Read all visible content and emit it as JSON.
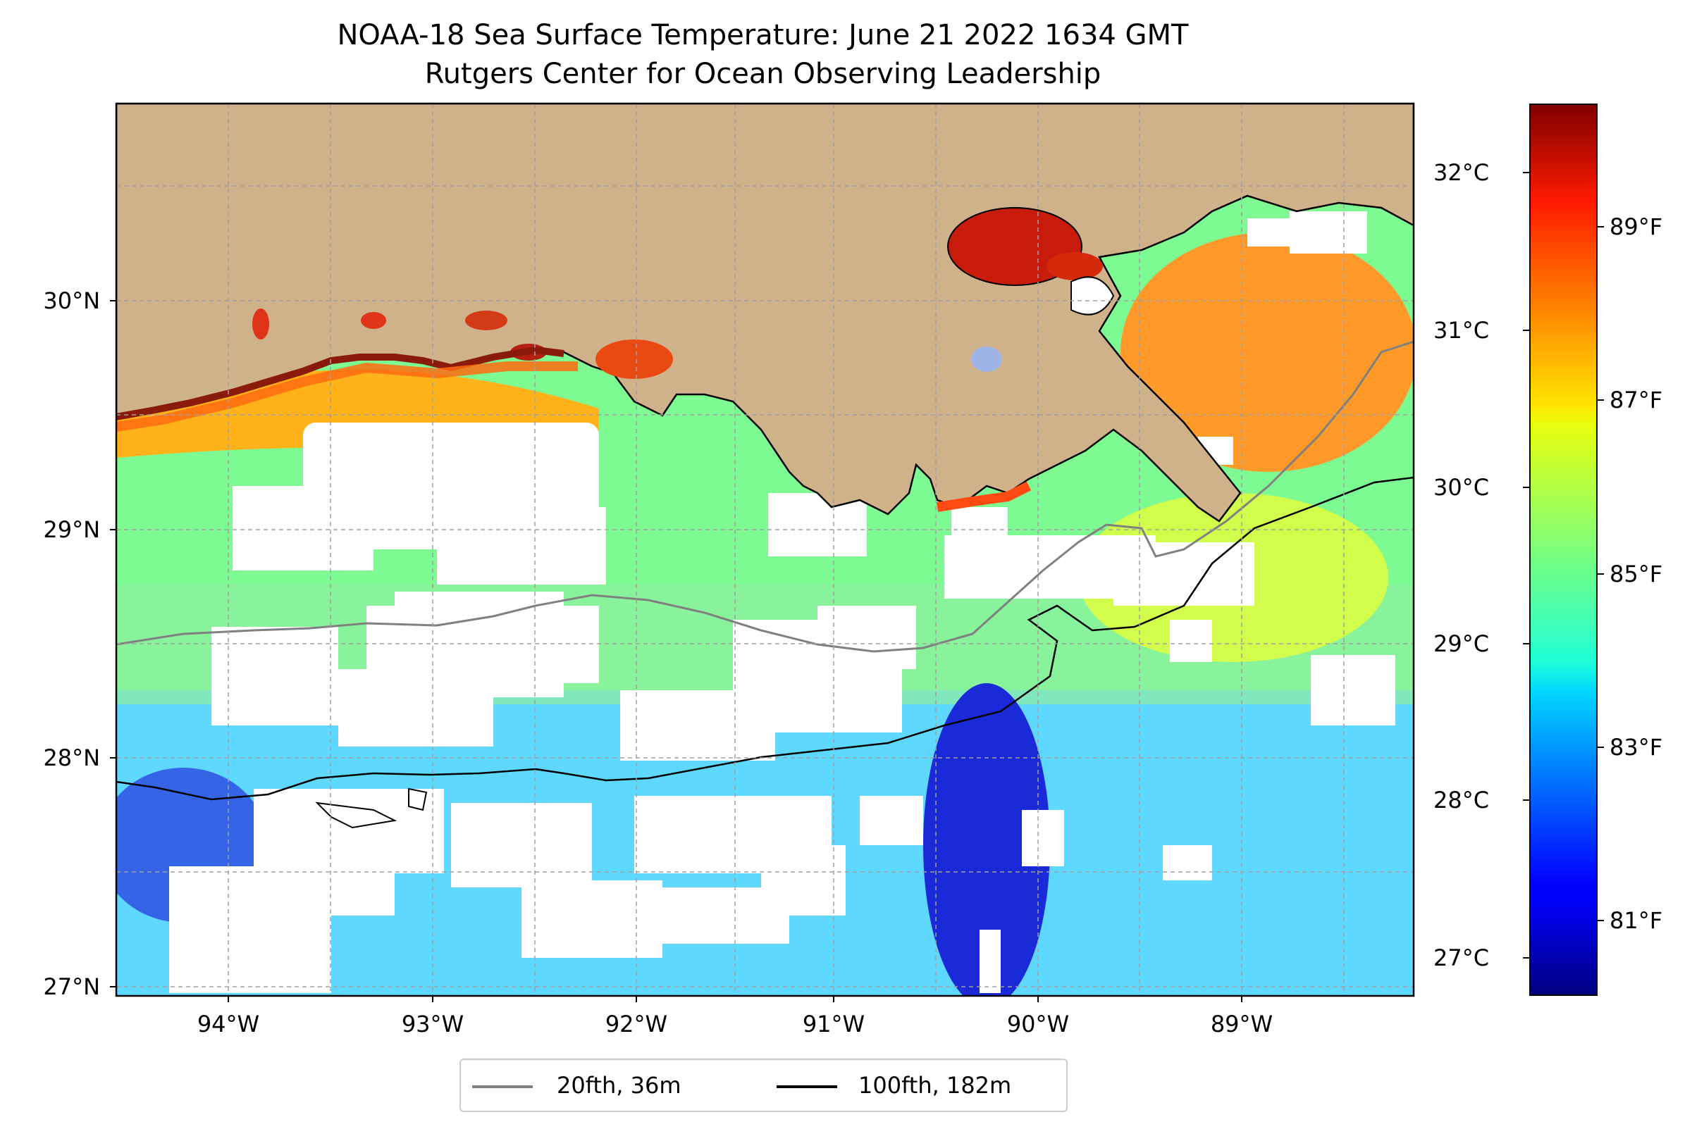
{
  "title": {
    "line1": "NOAA-18 Sea Surface Temperature: June 21 2022 1634 GMT",
    "line2": "Rutgers Center for Ocean Observing Leadership"
  },
  "map": {
    "extent": {
      "lon": [
        -94.58,
        -88.22
      ],
      "lat": [
        26.93,
        30.83
      ]
    },
    "lat_ticks": [
      {
        "value": 30,
        "label": "30°N"
      },
      {
        "value": 29,
        "label": "29°N"
      },
      {
        "value": 28,
        "label": "28°N"
      },
      {
        "value": 27,
        "label": "27°N"
      }
    ],
    "lon_ticks": [
      {
        "value": -94,
        "label": "94°W"
      },
      {
        "value": -93,
        "label": "93°W"
      },
      {
        "value": -92,
        "label": "92°W"
      },
      {
        "value": -91,
        "label": "91°W"
      },
      {
        "value": -90,
        "label": "90°W"
      },
      {
        "value": -89,
        "label": "89°W"
      }
    ],
    "gridlines": true,
    "land_color": "#cfb18a",
    "cloud_color": "#ffffff"
  },
  "legend": {
    "items": [
      {
        "label": "20fth, 36m",
        "color": "#808080"
      },
      {
        "label": "100fth, 182m",
        "color": "#000000"
      }
    ]
  },
  "colorbar": {
    "colormap": "jet",
    "celsius_range": [
      26.65,
      32.45
    ],
    "celsius_ticks": [
      {
        "value": 32,
        "label": "32°C"
      },
      {
        "value": 31,
        "label": "31°C"
      },
      {
        "value": 30,
        "label": "30°C"
      },
      {
        "value": 29,
        "label": "29°C"
      },
      {
        "value": 28,
        "label": "28°C"
      },
      {
        "value": 27,
        "label": "27°C"
      }
    ],
    "fahrenheit_ticks": [
      {
        "value": 89,
        "label": "89°F"
      },
      {
        "value": 87,
        "label": "87°F"
      },
      {
        "value": 85,
        "label": "85°F"
      },
      {
        "value": 83,
        "label": "83°F"
      },
      {
        "value": 81,
        "label": "81°F"
      }
    ]
  }
}
